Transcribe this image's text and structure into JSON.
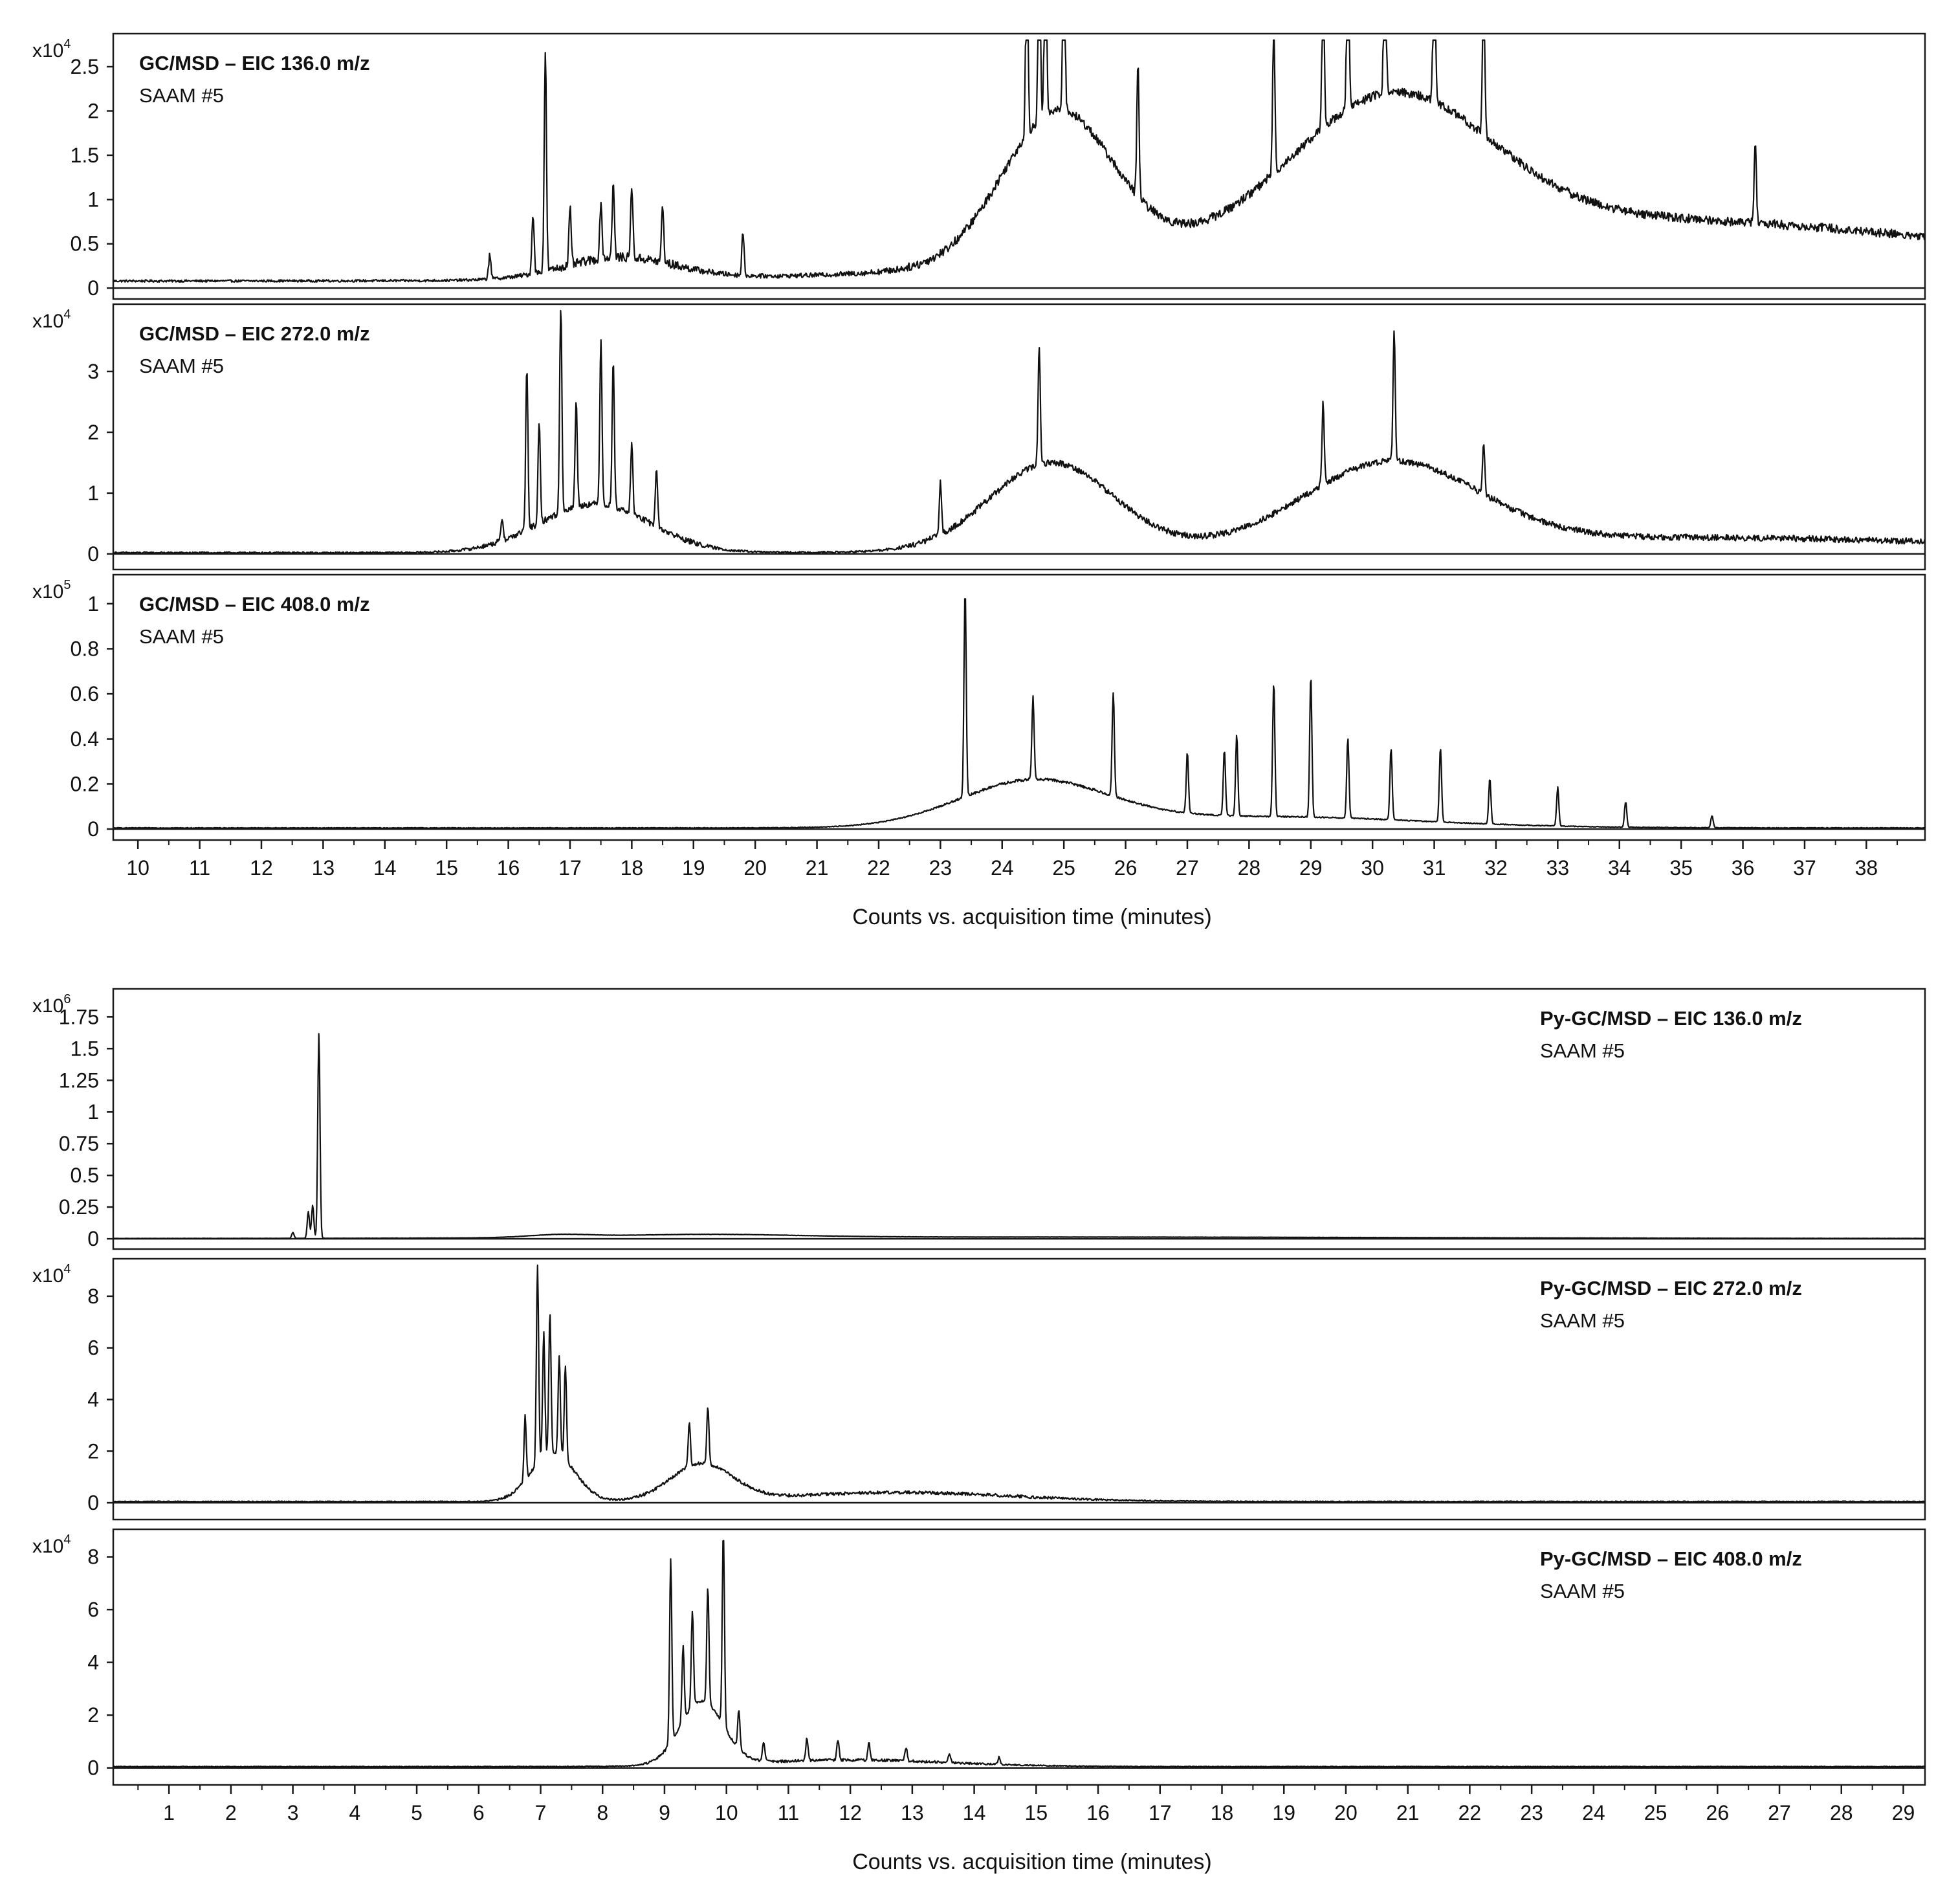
{
  "figure": {
    "groups": [
      {
        "id": "gc",
        "xlabel": "Counts vs. acquisition time (minutes)",
        "xlim": [
          9.6,
          38.95
        ],
        "x_ticks": [
          10,
          11,
          12,
          13,
          14,
          15,
          16,
          17,
          18,
          19,
          20,
          21,
          22,
          23,
          24,
          25,
          26,
          27,
          28,
          29,
          30,
          31,
          32,
          33,
          34,
          35,
          36,
          37,
          38
        ],
        "x_tick_labels": [
          "10",
          "11",
          "12",
          "13",
          "14",
          "15",
          "16",
          "17",
          "18",
          "19",
          "20",
          "21",
          "22",
          "23",
          "24",
          "25",
          "26",
          "27",
          "28",
          "29",
          "30",
          "31",
          "32",
          "33",
          "34",
          "35",
          "36",
          "37",
          "38"
        ]
      },
      {
        "id": "pygc",
        "xlabel": "Counts vs. acquisition time (minutes)",
        "xlim": [
          0.1,
          29.35
        ],
        "x_ticks": [
          1,
          2,
          3,
          4,
          5,
          6,
          7,
          8,
          9,
          10,
          11,
          12,
          13,
          14,
          15,
          16,
          17,
          18,
          19,
          20,
          21,
          22,
          23,
          24,
          25,
          26,
          27,
          28,
          29
        ],
        "x_tick_labels": [
          "1",
          "2",
          "3",
          "4",
          "5",
          "6",
          "7",
          "8",
          "9",
          "10",
          "11",
          "12",
          "13",
          "14",
          "15",
          "16",
          "17",
          "18",
          "19",
          "20",
          "21",
          "22",
          "23",
          "24",
          "25",
          "26",
          "27",
          "28",
          "29"
        ]
      }
    ]
  },
  "chart_data": [
    {
      "type": "line",
      "group": "gc",
      "title": "GC/MSD – EIC 136.0 m/z",
      "subtitle": "SAAM #5",
      "exponent_base": "x10",
      "exponent_power": "4",
      "ylim": [
        -0.05,
        2.8
      ],
      "y_ticks": [
        0,
        0.5,
        1,
        1.5,
        2,
        2.5
      ],
      "y_tick_labels": [
        "0",
        "0.5",
        "1",
        "1.5",
        "2",
        "2.5"
      ],
      "title_position": "top-left",
      "baseline": 0.08,
      "noise": 0.05,
      "humps": [
        [
          17.8,
          0.25,
          0.9
        ],
        [
          24.9,
          1.7,
          0.9
        ],
        [
          30.3,
          1.55,
          1.6
        ],
        [
          34,
          0.7,
          6
        ]
      ],
      "spikes": [
        [
          15.7,
          0.35
        ],
        [
          16.4,
          0.75
        ],
        [
          16.6,
          2.6
        ],
        [
          17,
          0.7
        ],
        [
          17.5,
          0.7
        ],
        [
          17.7,
          0.9
        ],
        [
          18.0,
          0.88
        ],
        [
          18.5,
          0.7
        ],
        [
          19.8,
          0.55
        ],
        [
          24.4,
          2.6
        ],
        [
          24.6,
          2.3
        ],
        [
          24.7,
          2.55
        ],
        [
          25.0,
          2.5
        ],
        [
          26.2,
          1.6
        ],
        [
          28.4,
          1.8
        ],
        [
          29.2,
          2.05
        ],
        [
          29.6,
          2.7
        ],
        [
          30.2,
          2.5
        ],
        [
          31.0,
          2.4
        ],
        [
          31.8,
          1.9
        ],
        [
          36.2,
          1.0
        ]
      ]
    },
    {
      "type": "line",
      "group": "gc",
      "title": "GC/MSD – EIC 272.0 m/z",
      "subtitle": "SAAM #5",
      "exponent_base": "x10",
      "exponent_power": "4",
      "ylim": [
        -0.15,
        4.0
      ],
      "y_ticks": [
        0,
        1,
        2,
        3
      ],
      "y_tick_labels": [
        "0",
        "1",
        "2",
        "3"
      ],
      "title_position": "top-left",
      "baseline": 0.02,
      "noise": 0.05,
      "humps": [
        [
          17.4,
          0.8,
          0.9
        ],
        [
          24.8,
          1.45,
          1.0
        ],
        [
          30.3,
          1.35,
          1.4
        ],
        [
          35,
          0.25,
          5
        ]
      ],
      "spikes": [
        [
          15.9,
          0.4
        ],
        [
          16.3,
          2.75
        ],
        [
          16.5,
          1.7
        ],
        [
          16.85,
          3.55
        ],
        [
          17.1,
          1.8
        ],
        [
          17.5,
          2.8
        ],
        [
          17.7,
          2.5
        ],
        [
          18.0,
          1.2
        ],
        [
          18.4,
          1.0
        ],
        [
          23.0,
          0.9
        ],
        [
          24.6,
          2.0
        ],
        [
          29.2,
          1.4
        ],
        [
          30.35,
          2.2
        ],
        [
          31.8,
          0.9
        ]
      ]
    },
    {
      "type": "line",
      "group": "gc",
      "title": "GC/MSD – EIC 408.0 m/z",
      "subtitle": "SAAM #5",
      "exponent_base": "x10",
      "exponent_power": "5",
      "ylim": [
        -0.02,
        1.1
      ],
      "y_ticks": [
        0,
        0.2,
        0.4,
        0.6,
        0.8,
        1
      ],
      "y_tick_labels": [
        "0",
        "0.2",
        "0.4",
        "0.6",
        "0.8",
        "1"
      ],
      "title_position": "top-left",
      "baseline": 0.005,
      "noise": 0.006,
      "humps": [
        [
          24.5,
          0.2,
          1.2
        ],
        [
          28.3,
          0.05,
          2.5
        ]
      ],
      "spikes": [
        [
          23.4,
          0.95
        ],
        [
          24.5,
          0.38
        ],
        [
          25.8,
          0.48
        ],
        [
          27.0,
          0.28
        ],
        [
          27.6,
          0.3
        ],
        [
          27.8,
          0.37
        ],
        [
          28.4,
          0.62
        ],
        [
          29.0,
          0.65
        ],
        [
          29.6,
          0.37
        ],
        [
          30.3,
          0.33
        ],
        [
          31.1,
          0.35
        ],
        [
          31.9,
          0.21
        ],
        [
          33.0,
          0.18
        ],
        [
          34.1,
          0.12
        ],
        [
          35.5,
          0.06
        ]
      ]
    },
    {
      "type": "line",
      "group": "pygc",
      "title": "Py-GC/MSD – EIC 136.0 m/z",
      "subtitle": "SAAM #5",
      "exponent_base": "x10",
      "exponent_power": "6",
      "ylim": [
        -0.03,
        1.92
      ],
      "y_ticks": [
        0,
        0.25,
        0.5,
        0.75,
        1,
        1.25,
        1.5,
        1.75
      ],
      "y_tick_labels": [
        "0",
        "0.25",
        "0.5",
        "0.75",
        "1",
        "1.25",
        "1.5",
        "1.75"
      ],
      "title_position": "top-right",
      "baseline": 0.002,
      "noise": 0.003,
      "humps": [
        [
          7.3,
          0.02,
          0.5
        ],
        [
          9.6,
          0.025,
          1.5
        ],
        [
          15,
          0.012,
          6
        ]
      ],
      "spikes": [
        [
          3.0,
          0.05
        ],
        [
          3.25,
          0.22
        ],
        [
          3.32,
          0.27
        ],
        [
          3.42,
          1.67
        ]
      ]
    },
    {
      "type": "line",
      "group": "pygc",
      "title": "Py-GC/MSD – EIC 272.0 m/z",
      "subtitle": "SAAM #5",
      "exponent_base": "x10",
      "exponent_power": "4",
      "ylim": [
        -0.4,
        9.2
      ],
      "y_ticks": [
        0,
        2,
        4,
        6,
        8
      ],
      "y_tick_labels": [
        "0",
        "2",
        "4",
        "6",
        "8"
      ],
      "title_position": "top-right",
      "baseline": 0.05,
      "noise": 0.06,
      "humps": [
        [
          7.2,
          1.9,
          0.35
        ],
        [
          9.6,
          1.4,
          0.5
        ],
        [
          12.8,
          0.35,
          1.8
        ]
      ],
      "spikes": [
        [
          6.75,
          2.6
        ],
        [
          6.95,
          8.0
        ],
        [
          7.05,
          5.0
        ],
        [
          7.15,
          5.7
        ],
        [
          7.3,
          4.0
        ],
        [
          7.4,
          3.8
        ],
        [
          9.4,
          1.8
        ],
        [
          9.7,
          2.3
        ]
      ]
    },
    {
      "type": "line",
      "group": "pygc",
      "title": "Py-GC/MSD – EIC 408.0 m/z",
      "subtitle": "SAAM #5",
      "exponent_base": "x10",
      "exponent_power": "4",
      "ylim": [
        -0.4,
        8.8
      ],
      "y_ticks": [
        0,
        2,
        4,
        6,
        8
      ],
      "y_tick_labels": [
        "0",
        "2",
        "4",
        "6",
        "8"
      ],
      "title_position": "top-right",
      "baseline": 0.05,
      "noise": 0.05,
      "humps": [
        [
          9.6,
          2.4,
          0.35
        ],
        [
          12,
          0.25,
          1.6
        ]
      ],
      "spikes": [
        [
          9.1,
          7.2
        ],
        [
          9.3,
          3.0
        ],
        [
          9.45,
          3.8
        ],
        [
          9.7,
          4.6
        ],
        [
          9.95,
          7.6
        ],
        [
          10.2,
          1.5
        ],
        [
          10.6,
          0.8
        ],
        [
          11.3,
          0.9
        ],
        [
          11.8,
          0.8
        ],
        [
          12.3,
          0.7
        ],
        [
          12.9,
          0.55
        ],
        [
          13.6,
          0.4
        ],
        [
          14.4,
          0.3
        ]
      ]
    }
  ]
}
